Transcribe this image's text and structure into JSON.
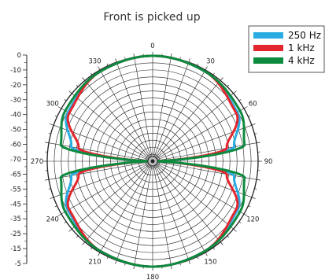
{
  "chart_data": {
    "type": "polar",
    "title": "Front is picked up",
    "angle_ticks": [
      "0",
      "30",
      "60",
      "90",
      "120",
      "150",
      "180",
      "210",
      "240",
      "270",
      "300",
      "330"
    ],
    "radial_scale_labels": [
      "0",
      "-10",
      "-20",
      "-30",
      "-40",
      "-50",
      "-60",
      "-70",
      "-65",
      "-55",
      "-45",
      "-35",
      "-25",
      "-15",
      "-5"
    ],
    "series": [
      {
        "name": "250 Hz",
        "color": "#2aace2",
        "angles": [
          0,
          30,
          60,
          80,
          90,
          100,
          120,
          150,
          180,
          210,
          240,
          260,
          270,
          280,
          300,
          330
        ],
        "values": [
          0,
          -1,
          -5,
          -15,
          -70,
          -15,
          -5,
          -1,
          0,
          -1,
          -5,
          -15,
          -70,
          -15,
          -5,
          -1
        ]
      },
      {
        "name": "1 kHz",
        "color": "#e3262e",
        "angles": [
          0,
          30,
          60,
          80,
          90,
          100,
          120,
          150,
          180,
          210,
          240,
          260,
          270,
          280,
          300,
          330
        ],
        "values": [
          0,
          -1,
          -6,
          -20,
          -70,
          -20,
          -6,
          -1,
          0,
          -1,
          -6,
          -20,
          -70,
          -20,
          -6,
          -1
        ]
      },
      {
        "name": "4 kHz",
        "color": "#0c8a3e",
        "angles": [
          0,
          30,
          60,
          80,
          90,
          100,
          120,
          150,
          180,
          210,
          240,
          260,
          270,
          280,
          300,
          330
        ],
        "values": [
          0,
          -1,
          -3,
          -8,
          -70,
          -8,
          -3,
          -1,
          0,
          -1,
          -3,
          -8,
          -70,
          -8,
          -3,
          -1
        ]
      }
    ],
    "grid": true,
    "legend_position": "top-right"
  }
}
